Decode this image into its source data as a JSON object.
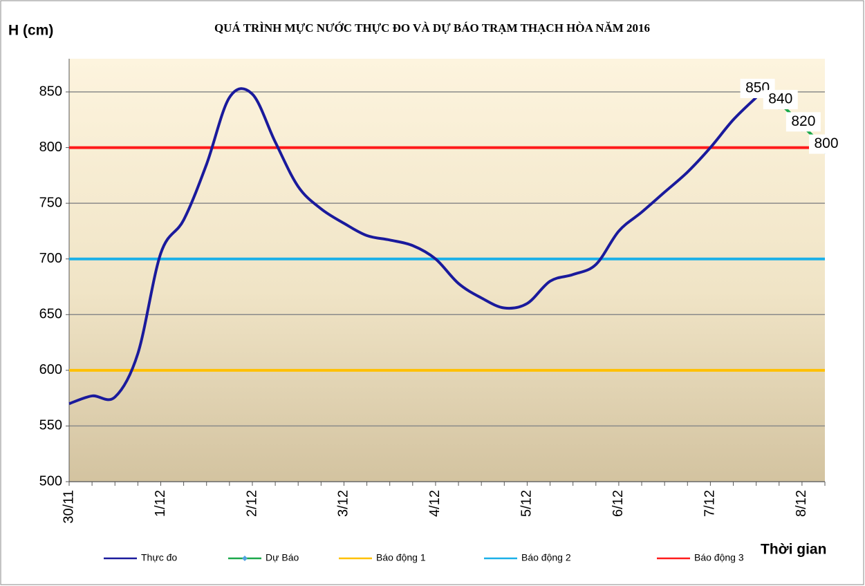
{
  "chart_data": {
    "type": "line",
    "title": "QUÁ TRÌNH MỰC NƯỚC THỰC ĐO VÀ DỰ BÁO TRẠM THẠCH HÒA NĂM 2016",
    "y_label": "H (cm)",
    "x_label": "Thời gian",
    "categories": [
      "30/11",
      null,
      null,
      null,
      "1/12",
      null,
      null,
      null,
      "2/12",
      null,
      null,
      null,
      "3/12",
      null,
      null,
      null,
      "4/12",
      null,
      null,
      null,
      "5/12",
      null,
      null,
      null,
      "6/12",
      null,
      null,
      null,
      "7/12",
      null,
      null,
      null,
      "8/12",
      null
    ],
    "series": [
      {
        "name": "Thực đo",
        "color": "#1a1a9c",
        "values": [
          570,
          577,
          576,
          615,
          705,
          735,
          785,
          845,
          848,
          805,
          765,
          745,
          732,
          721,
          717,
          712,
          700,
          678,
          665,
          656,
          660,
          680,
          686,
          695,
          725,
          742,
          760,
          778,
          800,
          825,
          845,
          null,
          null,
          null
        ]
      },
      {
        "name": "Dự Báo",
        "color": "#1aa84a",
        "marker": true,
        "data_labels": true,
        "values": [
          null,
          null,
          null,
          null,
          null,
          null,
          null,
          null,
          null,
          null,
          null,
          null,
          null,
          null,
          null,
          null,
          null,
          null,
          null,
          null,
          null,
          null,
          null,
          null,
          null,
          null,
          null,
          null,
          null,
          null,
          850,
          840,
          820,
          800
        ]
      },
      {
        "name": "Báo động 1",
        "color": "#ffc000",
        "values": [
          600,
          600,
          600,
          600,
          600,
          600,
          600,
          600,
          600,
          600,
          600,
          600,
          600,
          600,
          600,
          600,
          600,
          600,
          600,
          600,
          600,
          600,
          600,
          600,
          600,
          600,
          600,
          600,
          600,
          600,
          600,
          600,
          600,
          600
        ]
      },
      {
        "name": "Báo động 2",
        "color": "#1ab0e8",
        "values": [
          700,
          700,
          700,
          700,
          700,
          700,
          700,
          700,
          700,
          700,
          700,
          700,
          700,
          700,
          700,
          700,
          700,
          700,
          700,
          700,
          700,
          700,
          700,
          700,
          700,
          700,
          700,
          700,
          700,
          700,
          700,
          700,
          700,
          700
        ]
      },
      {
        "name": "Báo động 3",
        "color": "#ff1a1a",
        "values": [
          800,
          800,
          800,
          800,
          800,
          800,
          800,
          800,
          800,
          800,
          800,
          800,
          800,
          800,
          800,
          800,
          800,
          800,
          800,
          800,
          800,
          800,
          800,
          800,
          800,
          800,
          800,
          800,
          800,
          800,
          800,
          800,
          800,
          800
        ]
      }
    ],
    "ylim": [
      500,
      850
    ],
    "yticks": [
      500,
      550,
      600,
      650,
      700,
      750,
      800,
      850
    ],
    "grid": true,
    "legend": "bottom"
  }
}
